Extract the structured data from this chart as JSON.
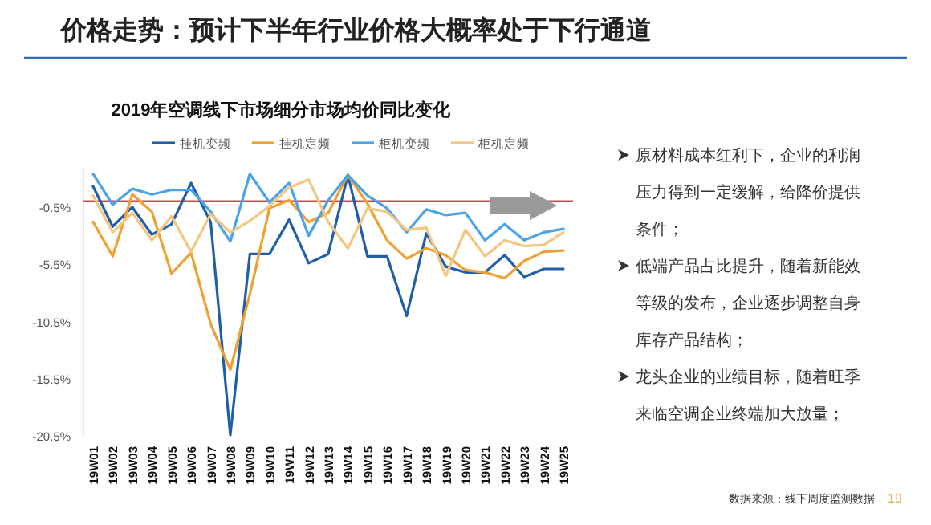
{
  "chart_data": {
    "type": "line",
    "title": "价格走势：预计下半年行业价格大概率处于下行通道",
    "subtitle": "2019年空调线下市场细分市场均价同比变化",
    "categories": [
      "19W01",
      "19W02",
      "19W03",
      "19W04",
      "19W05",
      "19W06",
      "19W07",
      "19W08",
      "19W09",
      "19W10",
      "19W11",
      "19W12",
      "19W13",
      "19W14",
      "19W15",
      "19W16",
      "19W17",
      "19W18",
      "19W19",
      "19W20",
      "19W21",
      "19W22",
      "19W23",
      "19W24",
      "19W25"
    ],
    "series": [
      {
        "name": "挂机变频",
        "color": "#1f5fa8",
        "values": [
          1.3,
          -2.2,
          -0.5,
          -2.9,
          -2.0,
          1.6,
          -1.8,
          -20.4,
          -4.6,
          -4.6,
          -1.6,
          -5.4,
          -4.6,
          2.3,
          -4.8,
          -4.8,
          -10.0,
          -2.8,
          -5.7,
          -6.2,
          -6.2,
          -4.7,
          -6.6,
          -5.9,
          -5.9
        ]
      },
      {
        "name": "挂机定频",
        "color": "#f0a030",
        "values": [
          -1.8,
          -4.8,
          0.6,
          -0.9,
          -6.3,
          -4.5,
          -10.7,
          -14.7,
          -8.1,
          -0.6,
          0.1,
          -1.8,
          -1.0,
          2.3,
          -0.2,
          -3.4,
          -5.0,
          -4.1,
          -4.7,
          -6.0,
          -6.2,
          -6.7,
          -5.2,
          -4.4,
          -4.3
        ]
      },
      {
        "name": "柜机变频",
        "color": "#4aa3e8",
        "values": [
          2.4,
          -0.3,
          1.1,
          0.6,
          1.0,
          1.0,
          -0.9,
          -3.5,
          2.4,
          -0.1,
          1.6,
          -3.0,
          0.1,
          2.3,
          0.5,
          -0.6,
          -2.7,
          -0.7,
          -1.2,
          -1.0,
          -3.4,
          -2.0,
          -3.4,
          -2.7,
          -2.4
        ]
      },
      {
        "name": "柜机定频",
        "color": "#f5c680",
        "values": [
          0.5,
          -2.7,
          -1.0,
          -3.4,
          -1.3,
          -4.4,
          -1.1,
          -2.7,
          -1.7,
          -0.4,
          1.2,
          1.9,
          -1.8,
          -4.1,
          -0.6,
          -0.9,
          -2.5,
          -2.3,
          -6.5,
          -2.5,
          -4.8,
          -3.4,
          -3.9,
          -3.8,
          -2.7
        ]
      }
    ],
    "ylim": [
      -20.5,
      3
    ],
    "yticks": [
      {
        "value": -0.5,
        "label": "-0.5%"
      },
      {
        "value": -5.5,
        "label": "-5.5%"
      },
      {
        "value": -10.5,
        "label": "-10.5%"
      },
      {
        "value": -15.5,
        "label": "-15.5%"
      },
      {
        "value": -20.5,
        "label": "-20.5%"
      }
    ],
    "ref_lines": [
      {
        "axis": "y",
        "value": 0,
        "label": null,
        "color": "#c0504d"
      }
    ],
    "grid": false,
    "legend": "top",
    "marker": "none",
    "line_style": "solid",
    "annotations": [
      "原材料成本红利下，企业的利润压力得到一定缓解，给降价提供条件；",
      "低端产品占比提升，随着新能效等级的发布，企业逐步调整自身库存产品结构；",
      "龙头企业的业绩目标，随着旺季来临空调企业终端加大放量；",
      "数据来源：线下周度监测数据",
      "19"
    ]
  }
}
